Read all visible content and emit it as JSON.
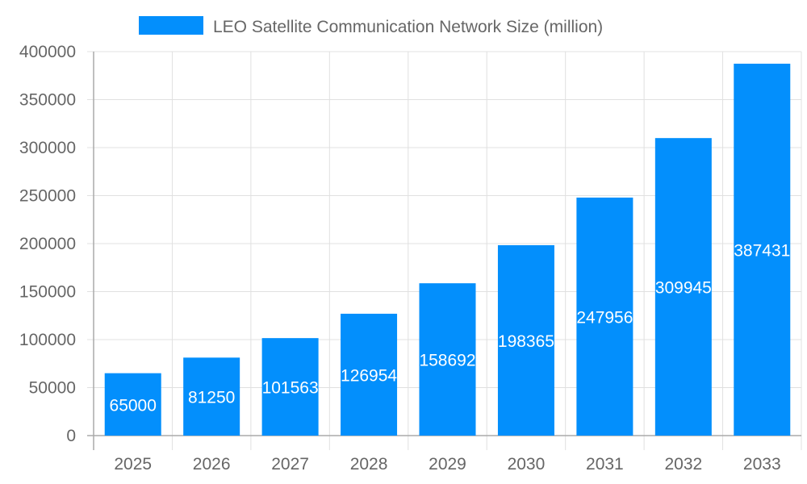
{
  "chart_data": {
    "type": "bar",
    "title": "",
    "xlabel": "",
    "ylabel": "",
    "categories": [
      "2025",
      "2026",
      "2027",
      "2028",
      "2029",
      "2030",
      "2031",
      "2032",
      "2033"
    ],
    "series": [
      {
        "name": "LEO Satellite Communication Network Size (million)",
        "values": [
          65000,
          81250,
          101563,
          126954,
          158692,
          198365,
          247956,
          309945,
          387431
        ]
      }
    ],
    "ylim": [
      0,
      400000
    ],
    "yticks": [
      0,
      50000,
      100000,
      150000,
      200000,
      250000,
      300000,
      350000,
      400000
    ],
    "grid": true,
    "legend": "top",
    "data_labels": true,
    "colors": {
      "bar": "#038ffc",
      "label": "#ffffff",
      "grid": "#e0e0e0",
      "text": "#666666"
    }
  }
}
